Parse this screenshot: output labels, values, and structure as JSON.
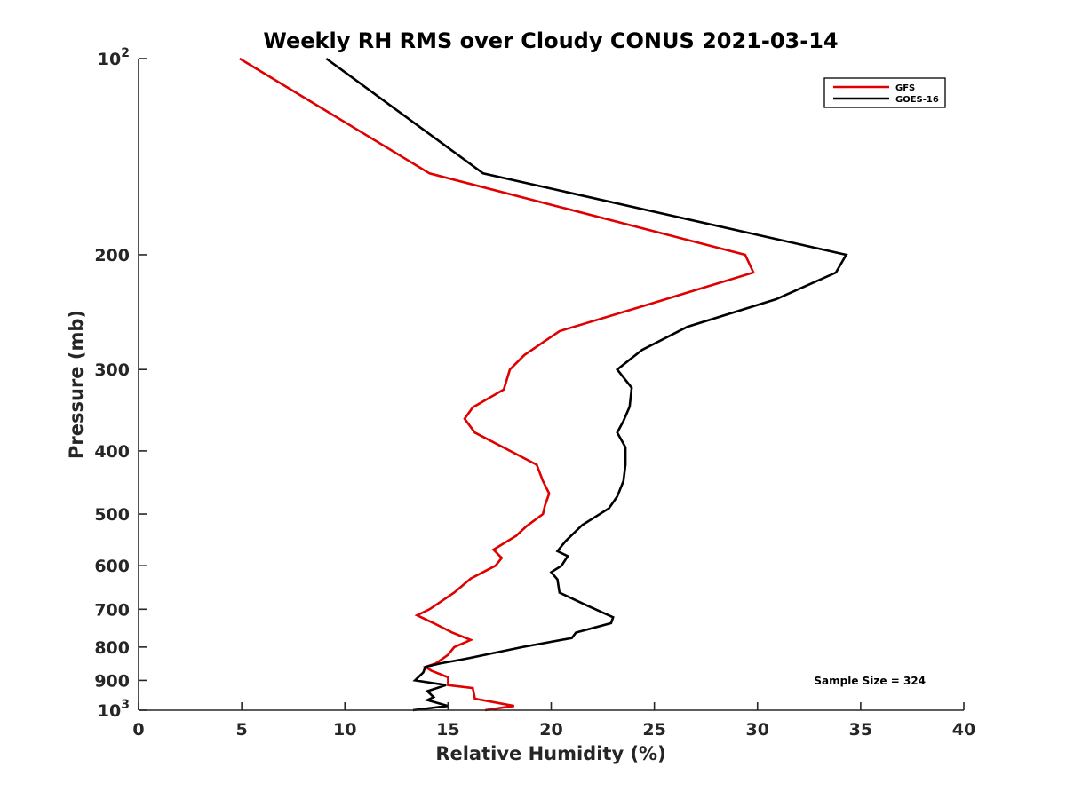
{
  "chart_data": {
    "type": "line",
    "title": "Weekly RH RMS over Cloudy CONUS 2021-03-14",
    "xlabel": "Relative Humidity (%)",
    "ylabel": "Pressure (mb)",
    "xlim": [
      0,
      40
    ],
    "ylim": [
      100,
      1000
    ],
    "y_scale": "log",
    "y_reversed": true,
    "x_ticks": [
      "0",
      "5",
      "10",
      "15",
      "20",
      "25",
      "30",
      "35",
      "40"
    ],
    "y_ticks": [
      {
        "value": 100,
        "label": "10",
        "sup": "2"
      },
      {
        "value": 200,
        "label": "200",
        "sup": ""
      },
      {
        "value": 300,
        "label": "300",
        "sup": ""
      },
      {
        "value": 400,
        "label": "400",
        "sup": ""
      },
      {
        "value": 500,
        "label": "500",
        "sup": ""
      },
      {
        "value": 600,
        "label": "600",
        "sup": ""
      },
      {
        "value": 700,
        "label": "700",
        "sup": ""
      },
      {
        "value": 800,
        "label": "800",
        "sup": ""
      },
      {
        "value": 900,
        "label": "900",
        "sup": ""
      },
      {
        "value": 1000,
        "label": "10",
        "sup": "3"
      }
    ],
    "legend_position": "top-right",
    "grid": false,
    "annotation": "Sample Size = 324",
    "series": [
      {
        "name": "GFS",
        "color": "#e00000",
        "points": [
          [
            4.9,
            100
          ],
          [
            14.1,
            150
          ],
          [
            29.4,
            200
          ],
          [
            29.8,
            213
          ],
          [
            24.4,
            240
          ],
          [
            20.4,
            262
          ],
          [
            18.7,
            285
          ],
          [
            18.0,
            300
          ],
          [
            17.7,
            322
          ],
          [
            16.2,
            343
          ],
          [
            15.8,
            357
          ],
          [
            16.3,
            375
          ],
          [
            19.3,
            420
          ],
          [
            19.6,
            445
          ],
          [
            19.9,
            465
          ],
          [
            19.7,
            485
          ],
          [
            19.6,
            500
          ],
          [
            18.8,
            522
          ],
          [
            18.3,
            540
          ],
          [
            17.2,
            567
          ],
          [
            17.6,
            584
          ],
          [
            17.3,
            600
          ],
          [
            16.1,
            628
          ],
          [
            15.3,
            660
          ],
          [
            14.1,
            700
          ],
          [
            13.5,
            715
          ],
          [
            14.3,
            735
          ],
          [
            15.2,
            760
          ],
          [
            16.1,
            780
          ],
          [
            15.3,
            800
          ],
          [
            15.0,
            822
          ],
          [
            14.4,
            848
          ],
          [
            13.9,
            858
          ],
          [
            14.2,
            870
          ],
          [
            15.0,
            890
          ],
          [
            15.0,
            915
          ],
          [
            16.2,
            925
          ],
          [
            16.3,
            960
          ],
          [
            18.2,
            985
          ],
          [
            16.8,
            1000
          ]
        ]
      },
      {
        "name": "GOES-16",
        "color": "#000000",
        "points": [
          [
            9.1,
            100
          ],
          [
            16.7,
            150
          ],
          [
            34.3,
            200
          ],
          [
            33.8,
            213
          ],
          [
            30.9,
            234
          ],
          [
            26.6,
            258
          ],
          [
            24.4,
            280
          ],
          [
            23.2,
            300
          ],
          [
            23.9,
            320
          ],
          [
            23.8,
            342
          ],
          [
            23.5,
            360
          ],
          [
            23.2,
            375
          ],
          [
            23.6,
            395
          ],
          [
            23.6,
            420
          ],
          [
            23.5,
            445
          ],
          [
            23.2,
            470
          ],
          [
            22.8,
            490
          ],
          [
            21.5,
            520
          ],
          [
            20.7,
            550
          ],
          [
            20.3,
            570
          ],
          [
            20.8,
            580
          ],
          [
            20.5,
            600
          ],
          [
            20.0,
            614
          ],
          [
            20.3,
            630
          ],
          [
            20.4,
            660
          ],
          [
            21.7,
            690
          ],
          [
            23.0,
            720
          ],
          [
            22.9,
            735
          ],
          [
            21.2,
            760
          ],
          [
            21.0,
            775
          ],
          [
            18.6,
            800
          ],
          [
            16.0,
            832
          ],
          [
            14.6,
            848
          ],
          [
            13.9,
            858
          ],
          [
            13.8,
            875
          ],
          [
            13.4,
            900
          ],
          [
            14.9,
            915
          ],
          [
            14.0,
            935
          ],
          [
            14.3,
            955
          ],
          [
            14.0,
            965
          ],
          [
            15.0,
            985
          ],
          [
            13.3,
            1000
          ]
        ]
      }
    ]
  }
}
